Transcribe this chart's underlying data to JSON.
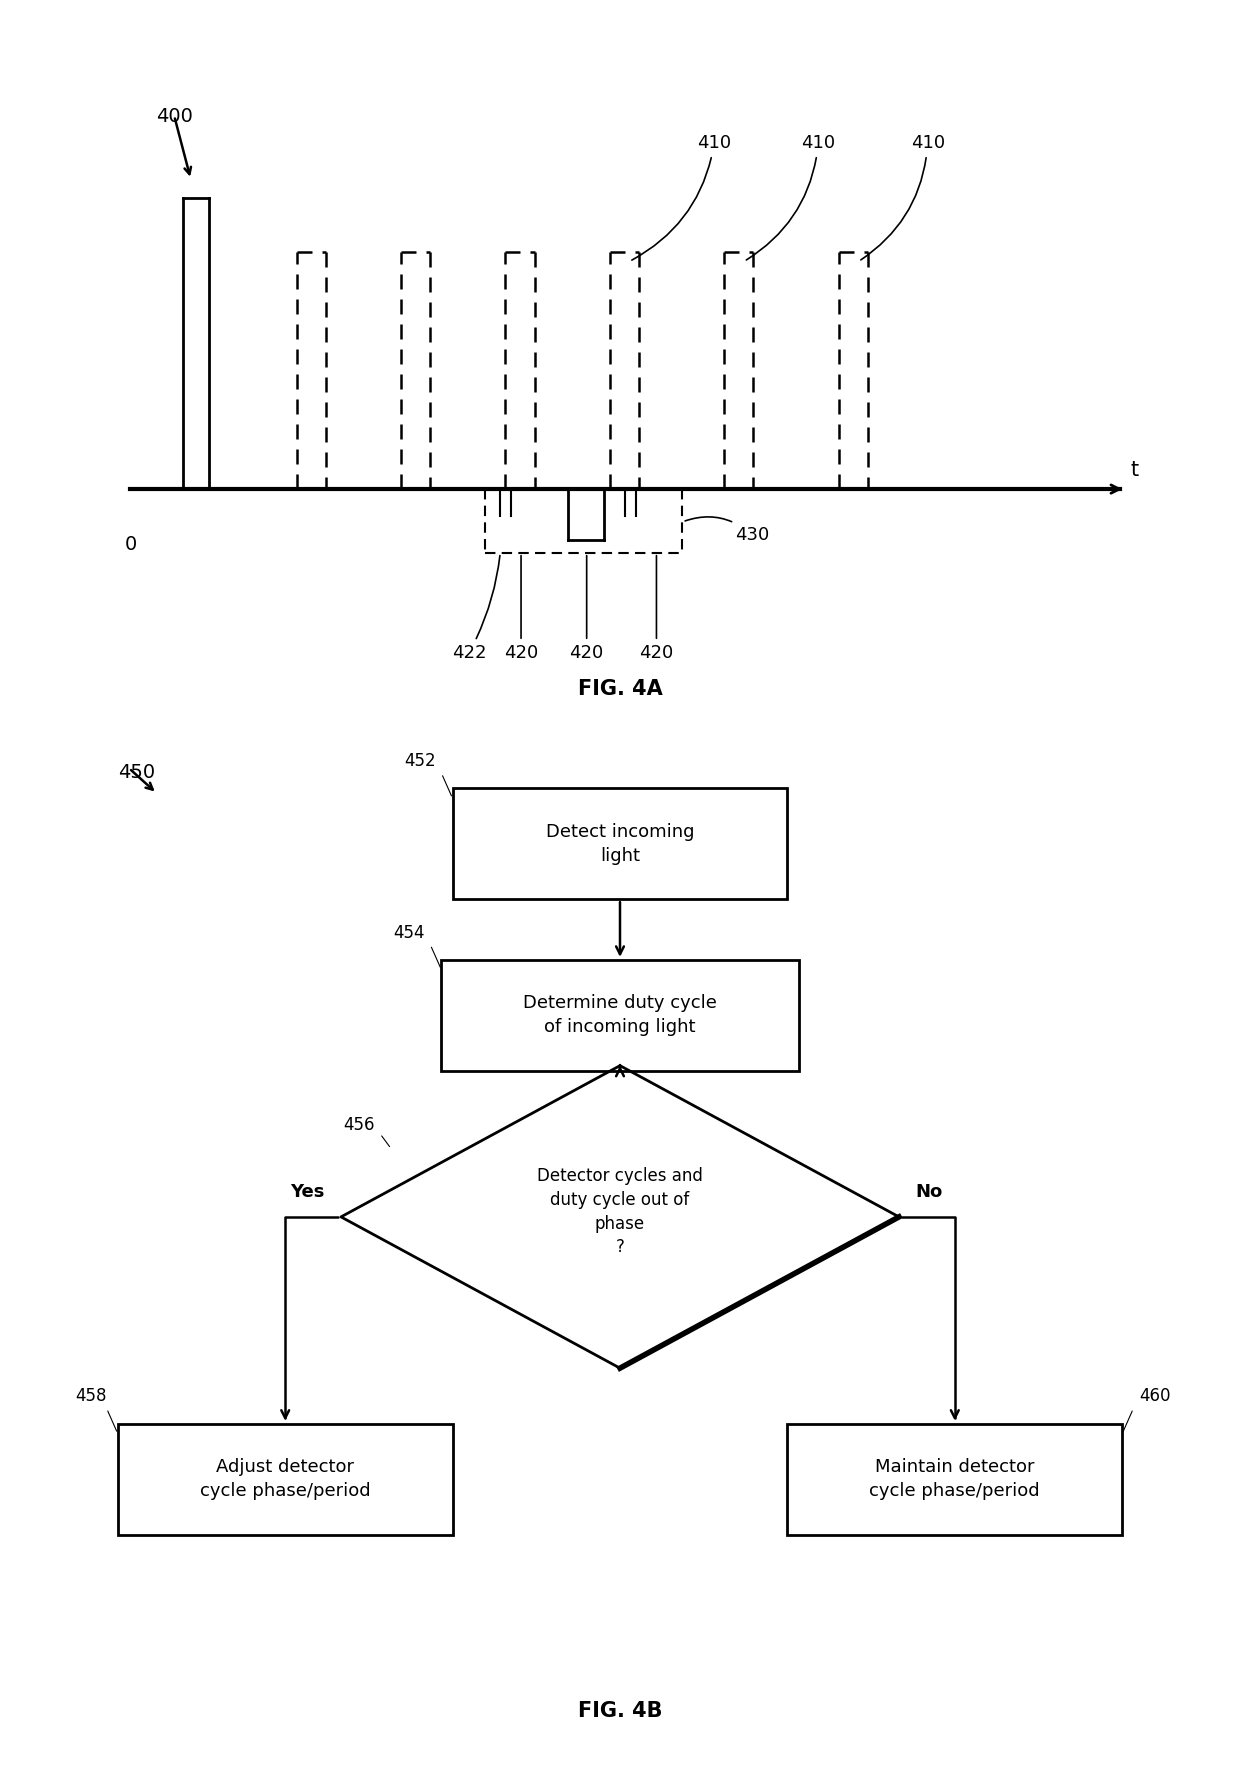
{
  "fig_width": 12.4,
  "fig_height": 17.69,
  "bg_color": "#ffffff",
  "label_400": "400",
  "label_450": "450",
  "label_fig4a": "FIG. 4A",
  "label_fig4b": "FIG. 4B",
  "box_452_text": "Detect incoming\nlight",
  "box_454_text": "Determine duty cycle\nof incoming light",
  "diamond_456_text": "Detector cycles and\nduty cycle out of\nphase\n?",
  "box_458_text": "Adjust detector\ncycle phase/period",
  "box_460_text": "Maintain detector\ncycle phase/period",
  "label_452": "452",
  "label_454": "454",
  "label_456": "456",
  "label_458": "458",
  "label_460": "460",
  "yes_label": "Yes",
  "no_label": "No"
}
